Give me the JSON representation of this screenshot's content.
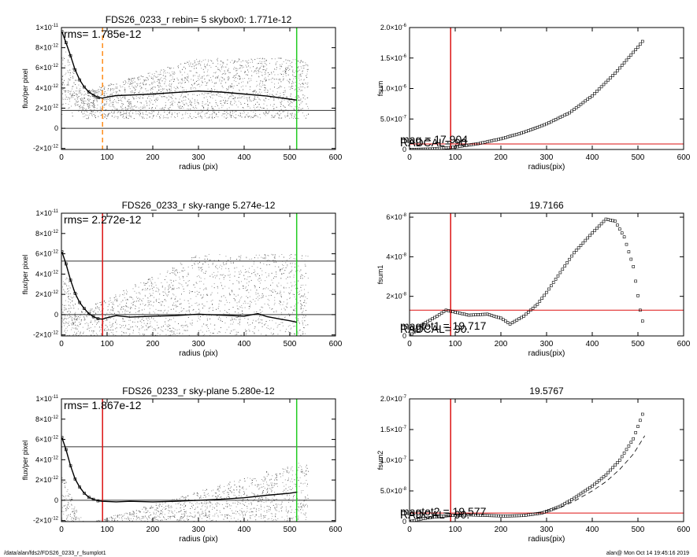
{
  "footer": {
    "path": "/data/alan/fds2/FDS26_0233_r_fsumplot1",
    "stamp": "alan@  Mon Oct 14 19:45:16 2019"
  },
  "chart_data": [
    {
      "id": "profile-1",
      "type": "scatter",
      "title": "FDS26_0233_r rebin= 5    skybox0:  1.771e-12",
      "rms_label": "rms= 1.785e-12",
      "xlabel": "radius (pix)",
      "ylabel": "flux/per pixel",
      "xlim": [
        0,
        600
      ],
      "ylim": [
        -2.1e-12,
        1e-11
      ],
      "xticks": [
        0,
        100,
        200,
        300,
        400,
        500,
        600
      ],
      "yticks": [
        {
          "v": 1e-11,
          "label": "1×10",
          "exp": "-11"
        },
        {
          "v": 8e-12,
          "label": "8×10",
          "exp": "-12"
        },
        {
          "v": 6e-12,
          "label": "6×10",
          "exp": "-12"
        },
        {
          "v": 4e-12,
          "label": "4×10",
          "exp": "-12"
        },
        {
          "v": 2e-12,
          "label": "2×10",
          "exp": "-12"
        },
        {
          "v": 0,
          "label": "0",
          "exp": ""
        },
        {
          "v": -2e-12,
          "label": "-2×10",
          "exp": "-12"
        }
      ],
      "hlines": [
        {
          "y": 1.771e-12,
          "color": "#333333"
        },
        {
          "y": 0,
          "color": "#333333"
        }
      ],
      "vlines": [
        {
          "x": 90,
          "color": "#ff8c1a",
          "dashed": true
        },
        {
          "x": 515,
          "color": "#22cc22"
        }
      ],
      "profile": [
        [
          1,
          9.6e-12
        ],
        [
          10,
          8.5e-12
        ],
        [
          20,
          7.2e-12
        ],
        [
          30,
          5.8e-12
        ],
        [
          40,
          4.8e-12
        ],
        [
          50,
          4.1e-12
        ],
        [
          60,
          3.6e-12
        ],
        [
          70,
          3.3e-12
        ],
        [
          80,
          3.05e-12
        ],
        [
          90,
          3e-12
        ],
        [
          100,
          3.1e-12
        ],
        [
          120,
          3.25e-12
        ],
        [
          150,
          3.3e-12
        ],
        [
          200,
          3.4e-12
        ],
        [
          250,
          3.55e-12
        ],
        [
          300,
          3.7e-12
        ],
        [
          350,
          3.6e-12
        ],
        [
          400,
          3.4e-12
        ],
        [
          450,
          3.2e-12
        ],
        [
          500,
          2.9e-12
        ],
        [
          515,
          2.8e-12
        ]
      ],
      "scatter_profile": "rise",
      "scatter_base": 1e-12,
      "scatter_spread": 6e-12
    },
    {
      "id": "fsum-1",
      "type": "scatter",
      "title": "",
      "xlabel": "radius(pix)",
      "ylabel": "fsum",
      "xlim": [
        0,
        600
      ],
      "ylim": [
        0,
        2e-06
      ],
      "xticks": [
        0,
        100,
        200,
        300,
        400,
        500,
        600
      ],
      "yticks": [
        {
          "v": 2e-06,
          "label": "2.0×10",
          "exp": "-6"
        },
        {
          "v": 1.5e-06,
          "label": "1.5×10",
          "exp": "-6"
        },
        {
          "v": 1e-06,
          "label": "1.0×10",
          "exp": "-6"
        },
        {
          "v": 5e-07,
          "label": "5.0×10",
          "exp": "-7"
        },
        {
          "v": 0,
          "label": "0",
          "exp": ""
        }
      ],
      "hlines": [
        {
          "y": 9e-08,
          "color": "#dd1111"
        }
      ],
      "vlines": [
        {
          "x": 90,
          "color": "#dd1111"
        }
      ],
      "annotations": [
        "RADCAL=   90.",
        "mag =  17.904"
      ],
      "curve": [
        [
          0,
          0
        ],
        [
          50,
          1e-08
        ],
        [
          100,
          4e-08
        ],
        [
          150,
          9.5e-08
        ],
        [
          200,
          1.75e-07
        ],
        [
          250,
          2.8e-07
        ],
        [
          300,
          4.2e-07
        ],
        [
          350,
          6e-07
        ],
        [
          400,
          8.8e-07
        ],
        [
          450,
          1.25e-06
        ],
        [
          500,
          1.68e-06
        ],
        [
          515,
          1.82e-06
        ]
      ]
    },
    {
      "id": "profile-2",
      "type": "scatter",
      "title": "FDS26_0233_r sky-range  5.274e-12",
      "rms_label": "rms= 2.272e-12",
      "xlabel": "radius (pix)",
      "ylabel": "flux/per pixel",
      "xlim": [
        0,
        600
      ],
      "ylim": [
        -2.1e-12,
        1e-11
      ],
      "xticks": [
        0,
        100,
        200,
        300,
        400,
        500,
        600
      ],
      "yticks": [
        {
          "v": 1e-11,
          "label": "1×10",
          "exp": "-11"
        },
        {
          "v": 8e-12,
          "label": "8×10",
          "exp": "-12"
        },
        {
          "v": 6e-12,
          "label": "6×10",
          "exp": "-12"
        },
        {
          "v": 4e-12,
          "label": "4×10",
          "exp": "-12"
        },
        {
          "v": 2e-12,
          "label": "2×10",
          "exp": "-12"
        },
        {
          "v": 0,
          "label": "0",
          "exp": ""
        },
        {
          "v": -2e-12,
          "label": "-2×10",
          "exp": "-12"
        }
      ],
      "hlines": [
        {
          "y": 5.274e-12,
          "color": "#333333"
        },
        {
          "y": 0,
          "color": "#333333"
        }
      ],
      "vlines": [
        {
          "x": 90,
          "color": "#dd1111"
        },
        {
          "x": 515,
          "color": "#22cc22"
        }
      ],
      "profile": [
        [
          1,
          6.2e-12
        ],
        [
          10,
          5e-12
        ],
        [
          20,
          3.4e-12
        ],
        [
          30,
          2.1e-12
        ],
        [
          40,
          1.2e-12
        ],
        [
          50,
          6e-13
        ],
        [
          60,
          1e-13
        ],
        [
          70,
          -2e-13
        ],
        [
          80,
          -4e-13
        ],
        [
          90,
          -4.5e-13
        ],
        [
          100,
          -3e-13
        ],
        [
          120,
          -1e-13
        ],
        [
          150,
          -2.5e-13
        ],
        [
          200,
          -1.5e-13
        ],
        [
          250,
          -1e-13
        ],
        [
          300,
          5e-14
        ],
        [
          350,
          -5e-14
        ],
        [
          400,
          -1.5e-13
        ],
        [
          430,
          1e-13
        ],
        [
          450,
          -2e-13
        ],
        [
          480,
          -4.5e-13
        ],
        [
          500,
          -6e-13
        ],
        [
          515,
          -7.5e-13
        ]
      ],
      "scatter_profile": "rise",
      "scatter_base": -4e-12,
      "scatter_spread": 1e-11
    },
    {
      "id": "fsum-2",
      "type": "scatter",
      "title": "19.7166",
      "xlabel": "radius(pix)",
      "ylabel": "fsum1",
      "xlim": [
        0,
        600
      ],
      "ylim": [
        0,
        6.2e-08
      ],
      "xticks": [
        0,
        100,
        200,
        300,
        400,
        500,
        600
      ],
      "yticks": [
        {
          "v": 6e-08,
          "label": "6×10",
          "exp": "-8"
        },
        {
          "v": 4e-08,
          "label": "4×10",
          "exp": "-8"
        },
        {
          "v": 2e-08,
          "label": "2×10",
          "exp": "-8"
        },
        {
          "v": 0,
          "label": "0",
          "exp": ""
        }
      ],
      "hlines": [
        {
          "y": 1.3e-08,
          "color": "#dd1111"
        }
      ],
      "vlines": [
        {
          "x": 90,
          "color": "#dd1111"
        }
      ],
      "annotations": [
        "RADCAL=   90.",
        "magtot1 = 19.717"
      ],
      "curve": [
        [
          0,
          0
        ],
        [
          30,
          6e-09
        ],
        [
          60,
          1e-08
        ],
        [
          80,
          1.3e-08
        ],
        [
          100,
          1.2e-08
        ],
        [
          130,
          1.05e-08
        ],
        [
          170,
          1.1e-08
        ],
        [
          200,
          9e-09
        ],
        [
          220,
          6e-09
        ],
        [
          250,
          1e-08
        ],
        [
          280,
          1.6e-08
        ],
        [
          300,
          2.2e-08
        ],
        [
          330,
          3.2e-08
        ],
        [
          360,
          4.2e-08
        ],
        [
          400,
          5.2e-08
        ],
        [
          430,
          5.9e-08
        ],
        [
          450,
          5.8e-08
        ],
        [
          470,
          5e-08
        ],
        [
          490,
          3.5e-08
        ],
        [
          505,
          1.3e-08
        ],
        [
          515,
          2e-09
        ]
      ]
    },
    {
      "id": "profile-3",
      "type": "scatter",
      "title": "FDS26_0233_r sky-plane  5.280e-12",
      "rms_label": "rms= 1.867e-12",
      "xlabel": "radius (pix)",
      "ylabel": "flux/per pixel",
      "xlim": [
        0,
        600
      ],
      "ylim": [
        -2.1e-12,
        1e-11
      ],
      "xticks": [
        0,
        100,
        200,
        300,
        400,
        500,
        600
      ],
      "yticks": [
        {
          "v": 1e-11,
          "label": "1×10",
          "exp": "-11"
        },
        {
          "v": 8e-12,
          "label": "8×10",
          "exp": "-12"
        },
        {
          "v": 6e-12,
          "label": "6×10",
          "exp": "-12"
        },
        {
          "v": 4e-12,
          "label": "4×10",
          "exp": "-12"
        },
        {
          "v": 2e-12,
          "label": "2×10",
          "exp": "-12"
        },
        {
          "v": 0,
          "label": "0",
          "exp": ""
        },
        {
          "v": -2e-12,
          "label": "-2×10",
          "exp": "-12"
        }
      ],
      "hlines": [
        {
          "y": 5.28e-12,
          "color": "#333333"
        },
        {
          "y": 0,
          "color": "#333333"
        }
      ],
      "vlines": [
        {
          "x": 90,
          "color": "#dd1111"
        },
        {
          "x": 515,
          "color": "#22cc22"
        }
      ],
      "profile": [
        [
          1,
          6.2e-12
        ],
        [
          10,
          5e-12
        ],
        [
          20,
          3.4e-12
        ],
        [
          30,
          2.1e-12
        ],
        [
          40,
          1.3e-12
        ],
        [
          50,
          7e-13
        ],
        [
          60,
          3e-13
        ],
        [
          70,
          1e-13
        ],
        [
          80,
          -5e-14
        ],
        [
          90,
          -1e-13
        ],
        [
          120,
          -1.5e-13
        ],
        [
          150,
          -1e-13
        ],
        [
          200,
          -1.5e-13
        ],
        [
          250,
          -1e-13
        ],
        [
          300,
          0
        ],
        [
          350,
          1e-13
        ],
        [
          400,
          2.5e-13
        ],
        [
          450,
          5e-13
        ],
        [
          500,
          7e-13
        ],
        [
          515,
          8e-13
        ]
      ],
      "scatter_profile": "wedge",
      "scatter_base": -4e-12,
      "scatter_spread": 7e-12
    },
    {
      "id": "fsum-3",
      "type": "scatter",
      "title": "19.5767",
      "xlabel": "radius(pix)",
      "ylabel": "fsum2",
      "xlim": [
        0,
        600
      ],
      "ylim": [
        0,
        2e-07
      ],
      "xticks": [
        0,
        100,
        200,
        300,
        400,
        500,
        600
      ],
      "yticks": [
        {
          "v": 2e-07,
          "label": "2.0×10",
          "exp": "-7"
        },
        {
          "v": 1.5e-07,
          "label": "1.5×10",
          "exp": "-7"
        },
        {
          "v": 1e-07,
          "label": "1.0×10",
          "exp": "-7"
        },
        {
          "v": 5e-08,
          "label": "5.0×10",
          "exp": "-8"
        },
        {
          "v": 0,
          "label": "0",
          "exp": ""
        }
      ],
      "hlines": [
        {
          "y": 1.4e-08,
          "color": "#dd1111"
        }
      ],
      "vlines": [
        {
          "x": 90,
          "color": "#dd1111"
        }
      ],
      "annotations": [
        "RADCAL=   90.",
        "magtot2 = 19.577"
      ],
      "curve": [
        [
          0,
          0
        ],
        [
          30,
          5e-09
        ],
        [
          60,
          8e-09
        ],
        [
          90,
          1e-08
        ],
        [
          130,
          1.1e-08
        ],
        [
          170,
          1e-08
        ],
        [
          210,
          9e-09
        ],
        [
          250,
          1e-08
        ],
        [
          290,
          1.4e-08
        ],
        [
          330,
          2.5e-08
        ],
        [
          360,
          3.8e-08
        ],
        [
          400,
          5.8e-08
        ],
        [
          430,
          7.6e-08
        ],
        [
          460,
          1e-07
        ],
        [
          490,
          1.35e-07
        ],
        [
          515,
          1.85e-07
        ]
      ],
      "dashed_curve": [
        [
          280,
          1.4e-08
        ],
        [
          330,
          2.3e-08
        ],
        [
          360,
          3.3e-08
        ],
        [
          400,
          5e-08
        ],
        [
          430,
          6.5e-08
        ],
        [
          460,
          8.5e-08
        ],
        [
          490,
          1.1e-07
        ],
        [
          515,
          1.4e-07
        ]
      ]
    }
  ]
}
